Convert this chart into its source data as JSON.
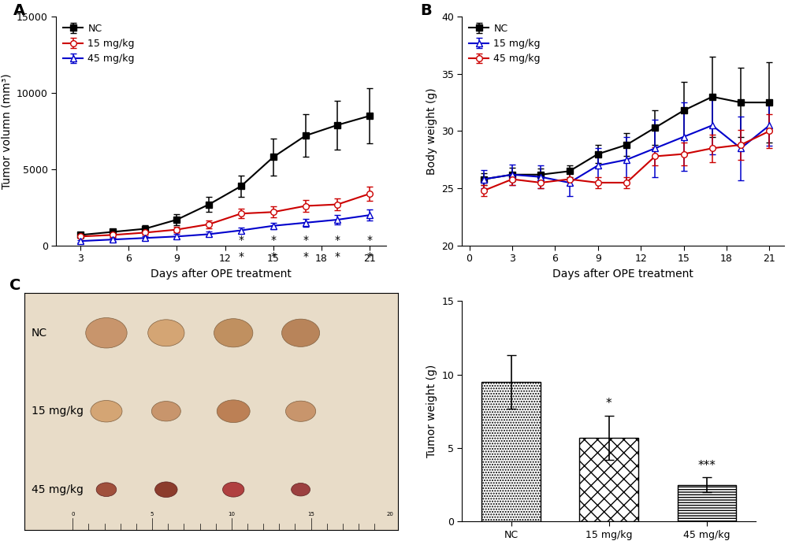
{
  "panel_A": {
    "days": [
      3,
      5,
      7,
      9,
      11,
      13,
      15,
      17,
      19,
      21
    ],
    "NC_mean": [
      700,
      900,
      1100,
      1700,
      2700,
      3900,
      5800,
      7200,
      7900,
      8500
    ],
    "NC_err": [
      150,
      200,
      250,
      350,
      500,
      700,
      1200,
      1400,
      1600,
      1800
    ],
    "mg15_mean": [
      600,
      700,
      850,
      1050,
      1400,
      2100,
      2200,
      2600,
      2700,
      3400
    ],
    "mg15_err": [
      100,
      120,
      130,
      200,
      250,
      300,
      350,
      400,
      400,
      450
    ],
    "mg45_mean": [
      300,
      400,
      500,
      600,
      750,
      1000,
      1300,
      1500,
      1700,
      2000
    ],
    "mg45_err": [
      80,
      100,
      120,
      150,
      150,
      200,
      200,
      250,
      300,
      350
    ],
    "sig_days_15": [
      13,
      15,
      17,
      19,
      21
    ],
    "sig_days_45": [
      13,
      15,
      17,
      19,
      21
    ],
    "xlabel": "Days after OPE treatment",
    "ylabel": "Tumor volumn (mm³)",
    "ylim": [
      0,
      15000
    ],
    "yticks": [
      0,
      5000,
      10000,
      15000
    ],
    "xticks": [
      3,
      6,
      9,
      12,
      15,
      18,
      21
    ],
    "panel_label": "A"
  },
  "panel_B": {
    "days": [
      1,
      3,
      5,
      7,
      9,
      11,
      13,
      15,
      17,
      19,
      21
    ],
    "NC_mean": [
      25.8,
      26.2,
      26.2,
      26.5,
      28.0,
      28.8,
      30.3,
      31.8,
      33.0,
      32.5,
      32.5
    ],
    "NC_err": [
      0.5,
      0.6,
      0.5,
      0.5,
      0.8,
      1.0,
      1.5,
      2.5,
      3.5,
      3.0,
      3.5
    ],
    "mg15_mean": [
      25.8,
      26.2,
      26.0,
      25.5,
      27.0,
      27.5,
      28.5,
      29.5,
      30.5,
      28.5,
      30.5
    ],
    "mg15_err": [
      0.8,
      0.9,
      1.0,
      1.2,
      1.5,
      2.0,
      2.5,
      3.0,
      2.5,
      2.8,
      1.8
    ],
    "mg45_mean": [
      24.8,
      25.8,
      25.5,
      25.8,
      25.5,
      25.5,
      27.8,
      28.0,
      28.5,
      28.8,
      30.0
    ],
    "mg45_err": [
      0.5,
      0.5,
      0.5,
      0.5,
      0.5,
      0.5,
      0.8,
      1.0,
      1.2,
      1.3,
      1.5
    ],
    "xlabel": "Days after OPE treatment",
    "ylabel": "Body weight (g)",
    "ylim": [
      20,
      40
    ],
    "yticks": [
      20,
      25,
      30,
      35,
      40
    ],
    "xticks": [
      0,
      3,
      6,
      9,
      12,
      15,
      18,
      21
    ],
    "panel_label": "B"
  },
  "panel_D": {
    "categories": [
      "NC",
      "15 mg/kg",
      "45 mg/kg"
    ],
    "values": [
      9.5,
      5.7,
      2.5
    ],
    "errors": [
      1.8,
      1.5,
      0.5
    ],
    "sig_labels": [
      "",
      "*",
      "***"
    ],
    "ylabel": "Tumor weight (g)",
    "ylim": [
      0,
      15
    ],
    "yticks": [
      0,
      5,
      10,
      15
    ],
    "panel_label": "C"
  },
  "colors": {
    "NC_A": "#000000",
    "mg15_A": "#cc0000",
    "mg45_A": "#0000cc",
    "NC_B": "#000000",
    "mg15_B": "#0000cc",
    "mg45_B": "#cc0000"
  }
}
